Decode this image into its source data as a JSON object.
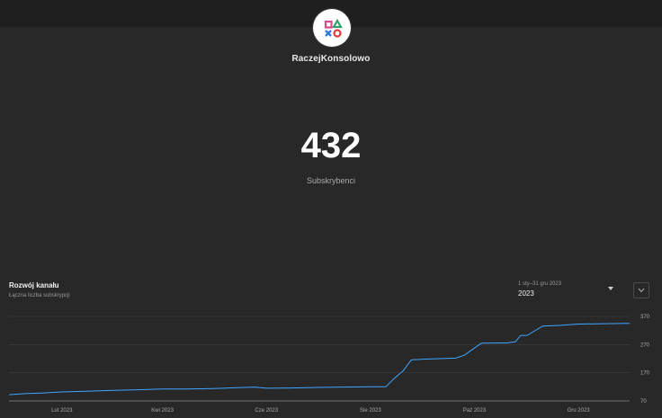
{
  "channel": {
    "name": "RaczejKonsolowo"
  },
  "stats": {
    "subscribers": "432",
    "subscribers_label": "Subskrybenci"
  },
  "icons": {
    "avatar": "playstation-symbols-logo-icon",
    "range_caret": "caret-down-icon",
    "expand": "chevron-down-icon"
  },
  "colors": {
    "line": "#3ea6ff",
    "grid": "#3f3f3f",
    "baseline": "#717171"
  },
  "card": {
    "title": "Rozwój kanału",
    "subtitle": "Łączna liczba subskrypcji",
    "range_label": "1 sty–31 gru 2023",
    "range_value": "2023"
  },
  "chart_data": {
    "type": "line",
    "title": "Rozwój kanału",
    "subtitle": "Łączna liczba subskrypcji",
    "y_ticks": [
      "370",
      "270",
      "170",
      "70"
    ],
    "ylim": [
      70,
      370
    ],
    "y_axis_position": "right",
    "grid": true,
    "x_tick_labels": [
      "Lut 2023",
      "Kwi 2023",
      "Cze 2023",
      "Sie 2023",
      "Paź 2023",
      "Gru 2023"
    ],
    "x_tick_dates": [
      "2023-02-01",
      "2023-04-01",
      "2023-06-01",
      "2023-08-01",
      "2023-10-01",
      "2023-12-01"
    ],
    "xlim": [
      "2023-01-01",
      "2023-12-31"
    ],
    "series": [
      {
        "x": [
          "2023-01-01",
          "2023-01-10",
          "2023-01-20",
          "2023-02-01",
          "2023-02-15",
          "2023-03-01",
          "2023-03-15",
          "2023-04-01",
          "2023-04-15",
          "2023-05-01",
          "2023-05-15",
          "2023-05-25",
          "2023-06-01",
          "2023-06-15",
          "2023-07-01",
          "2023-07-15",
          "2023-08-01",
          "2023-08-10",
          "2023-08-15",
          "2023-08-20",
          "2023-08-25",
          "2023-09-01",
          "2023-09-10",
          "2023-09-20",
          "2023-09-25",
          "2023-09-28",
          "2023-10-05",
          "2023-10-15",
          "2023-10-20",
          "2023-10-25",
          "2023-10-28",
          "2023-11-01",
          "2023-11-10",
          "2023-11-20",
          "2023-12-01",
          "2023-12-15",
          "2023-12-31"
        ],
        "y": [
          92,
          96,
          98,
          102,
          104,
          107,
          109,
          112,
          112,
          114,
          117,
          119,
          115,
          116,
          118,
          119,
          120,
          120,
          150,
          176,
          216,
          218,
          220,
          222,
          232,
          245,
          275,
          276,
          276,
          280,
          302,
          303,
          336,
          338,
          343,
          344,
          345
        ]
      }
    ]
  }
}
